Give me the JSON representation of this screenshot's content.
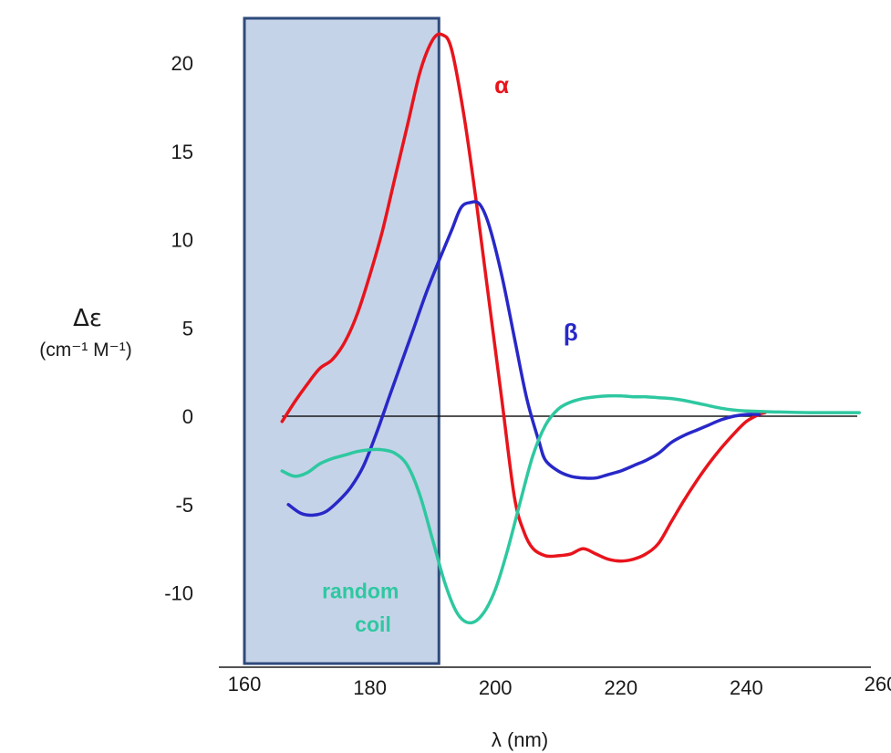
{
  "chart_data": {
    "type": "line",
    "xlabel": "λ (nm)",
    "ylabel": "Δε",
    "ylabel_units": "(cm⁻¹ M⁻¹)",
    "xlim": [
      160,
      262
    ],
    "ylim": [
      -14,
      23
    ],
    "x_ticks": [
      160,
      180,
      200,
      220,
      240,
      260
    ],
    "y_ticks": [
      20,
      15,
      10,
      5,
      0,
      -5,
      -10
    ],
    "grid": false,
    "zero_line": true,
    "shaded_region": {
      "x": [
        160,
        191
      ],
      "color": "#c5d3e8",
      "border": "#2f4a7c"
    },
    "series": [
      {
        "name": "α",
        "color": "#e8141c",
        "x": [
          166,
          168,
          170,
          172,
          174,
          176,
          178,
          180,
          182,
          184,
          186,
          188,
          190,
          191.5,
          193,
          195,
          197,
          199,
          201,
          203,
          204.5,
          206,
          208,
          210,
          212,
          214,
          216,
          218,
          220,
          222,
          224,
          226,
          228,
          230,
          232,
          234,
          236,
          238,
          240,
          242,
          243
        ],
        "y": [
          -0.3,
          0.8,
          1.8,
          2.7,
          3.2,
          4.2,
          5.8,
          8.0,
          10.5,
          13.5,
          16.5,
          19.5,
          21.3,
          21.6,
          20.8,
          17.0,
          12.0,
          6.5,
          1.0,
          -4.5,
          -6.5,
          -7.5,
          -7.9,
          -7.9,
          -7.8,
          -7.5,
          -7.8,
          -8.1,
          -8.2,
          -8.1,
          -7.8,
          -7.2,
          -6.0,
          -4.8,
          -3.7,
          -2.7,
          -1.8,
          -1.0,
          -0.3,
          0.1,
          0.2
        ]
      },
      {
        "name": "β",
        "color": "#2828c8",
        "x": [
          167,
          169,
          171,
          173,
          175,
          177,
          179,
          181,
          183,
          185,
          187,
          189,
          191,
          193,
          194.5,
          196,
          197.5,
          199,
          201,
          203,
          205,
          207,
          208,
          210,
          212,
          214,
          216,
          218,
          220,
          222,
          224,
          226,
          228,
          230,
          232,
          234,
          236,
          238,
          240,
          242
        ],
        "y": [
          -5.0,
          -5.5,
          -5.6,
          -5.4,
          -4.8,
          -4.0,
          -2.8,
          -1.0,
          1.0,
          3.0,
          5.0,
          7.0,
          8.8,
          10.5,
          11.8,
          12.1,
          12.0,
          10.8,
          8.0,
          4.5,
          1.0,
          -1.5,
          -2.5,
          -3.1,
          -3.4,
          -3.5,
          -3.5,
          -3.3,
          -3.1,
          -2.8,
          -2.5,
          -2.1,
          -1.5,
          -1.1,
          -0.8,
          -0.5,
          -0.2,
          0.0,
          0.1,
          0.1
        ]
      },
      {
        "name": "random coil",
        "color": "#2ec8a0",
        "x": [
          166,
          168,
          170,
          172,
          174,
          176,
          178,
          180,
          182,
          184,
          186,
          188,
          190,
          192,
          194,
          196,
          198,
          200,
          202,
          204,
          206,
          208,
          210,
          212,
          214,
          216,
          218,
          220,
          222,
          224,
          226,
          228,
          230,
          232,
          234,
          236,
          238,
          240,
          244,
          250,
          258
        ],
        "y": [
          -3.1,
          -3.4,
          -3.2,
          -2.7,
          -2.4,
          -2.2,
          -2.0,
          -1.9,
          -1.9,
          -2.1,
          -2.8,
          -4.5,
          -7.0,
          -9.5,
          -11.2,
          -11.7,
          -11.2,
          -9.8,
          -7.5,
          -4.8,
          -2.2,
          -0.5,
          0.4,
          0.8,
          1.0,
          1.1,
          1.15,
          1.15,
          1.1,
          1.1,
          1.05,
          1.0,
          0.9,
          0.75,
          0.6,
          0.45,
          0.35,
          0.3,
          0.25,
          0.2,
          0.2
        ]
      }
    ],
    "labels": [
      {
        "series": 0,
        "text": "α",
        "x": 201,
        "y": 18.3,
        "size": 26
      },
      {
        "series": 1,
        "text": "β",
        "x": 212,
        "y": 4.3,
        "size": 26
      },
      {
        "series": 2,
        "text": "random",
        "x": 178.5,
        "y": -10.3,
        "size": 23
      },
      {
        "series": 2,
        "text": "coil",
        "x": 180.5,
        "y": -12.2,
        "size": 23
      }
    ]
  }
}
